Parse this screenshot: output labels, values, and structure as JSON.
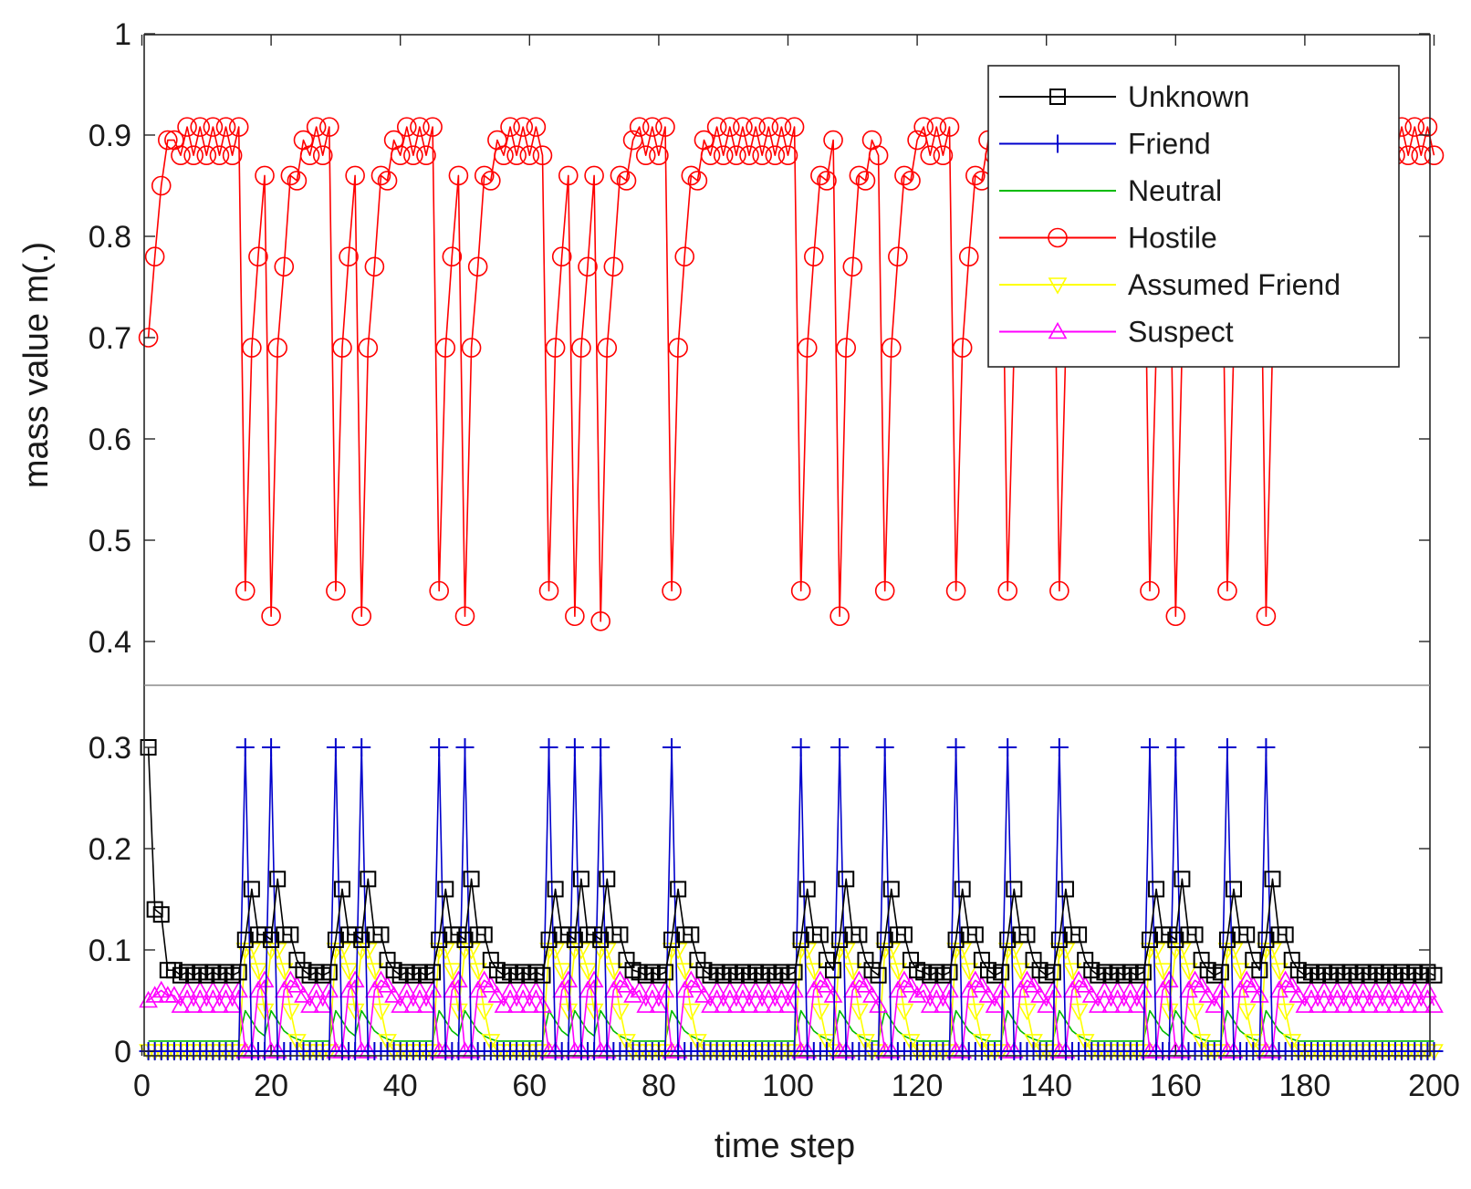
{
  "chart_data": {
    "type": "line",
    "xlabel": "time step",
    "ylabel": "mass value m(.)",
    "xlim": [
      0,
      200
    ],
    "xticks": [
      0,
      20,
      40,
      60,
      80,
      100,
      120,
      140,
      160,
      180,
      200
    ],
    "grid": false,
    "legend_position": "top-right",
    "axis_break": {
      "lower_range": [
        0,
        0.33
      ],
      "upper_range": [
        0.35,
        1.0
      ],
      "lower_ticks": [
        0,
        0.1,
        0.2,
        0.3
      ],
      "upper_ticks": [
        0.4,
        0.5,
        0.6,
        0.7,
        0.8,
        0.9,
        1
      ]
    },
    "spikes": {
      "a_steps": [
        16,
        30,
        46,
        63,
        82,
        102,
        115,
        126,
        134,
        142,
        156,
        168
      ],
      "b_steps": [
        20,
        34,
        50,
        67,
        108,
        160,
        174
      ],
      "c_steps": [
        71
      ]
    },
    "series": [
      {
        "name": "Unknown",
        "color": "#000000",
        "marker": "square",
        "description": "0.30 at step 1, ~0.14 at steps 2-3, settling to ~0.075; rises to ~0.16-0.17 one step after each spike and ~0.11 during recovery"
      },
      {
        "name": "Friend",
        "color": "#0000cc",
        "marker": "plus",
        "description": "~0 baseline; peaks of 0.30 at each spike step"
      },
      {
        "name": "Neutral",
        "color": "#00bb00",
        "marker": "none",
        "description": "~0.01 baseline; ~0.04 around spike steps"
      },
      {
        "name": "Hostile",
        "color": "#ff0000",
        "marker": "circle",
        "description": "0.70 at step 1, ~0.78 then ~0.85, plateaus at ~0.88-0.91; drops to ~0.45 (a) or ~0.42 (b) at spike steps, then recovers via ~0.69, ~0.78, ~0.86"
      },
      {
        "name": "Assumed Friend",
        "color": "#ffff00",
        "marker": "triangle-down",
        "description": "0 at steady state; ~0.10 around spike steps"
      },
      {
        "name": "Suspect",
        "color": "#ff00ff",
        "marker": "triangle-up",
        "description": "~0.05 baseline oscillating between ~0.045 and ~0.06; ~0 during spikes; ~0.07 during recovery"
      }
    ]
  }
}
